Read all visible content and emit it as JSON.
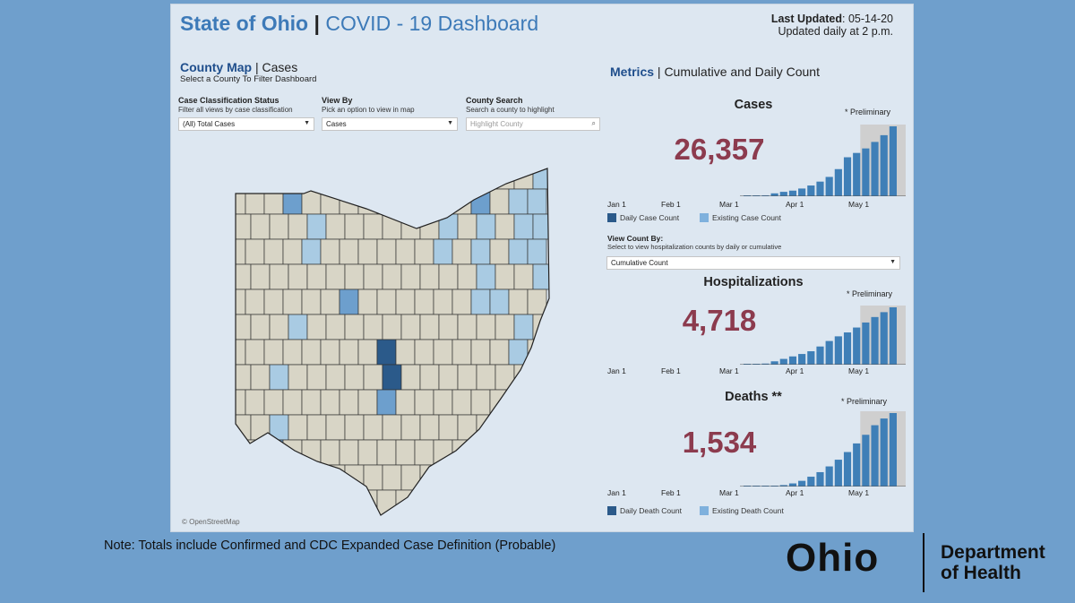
{
  "header": {
    "title_state": "State of Ohio",
    "title_sep": "|",
    "title_sub": "COVID - 19 Dashboard",
    "last_updated_label": "Last Updated",
    "last_updated_value": ": 05-14-20",
    "update_note": "Updated daily at 2 p.m."
  },
  "county_map": {
    "heading_strong": "County Map",
    "heading_rest": " | Cases",
    "subheading": "Select a County To Filter Dashboard",
    "attribution": "© OpenStreetMap",
    "filters": {
      "case_class": {
        "label": "Case Classification Status",
        "hint": "Filter all views by case classification",
        "value": "(All) Total Cases"
      },
      "view_by": {
        "label": "View By",
        "hint": "Pick an option to view in map",
        "value": "Cases"
      },
      "county_search": {
        "label": "County Search",
        "hint": "Search a county to highlight",
        "placeholder": "Highlight County"
      }
    }
  },
  "metrics": {
    "heading_strong": "Metrics",
    "heading_rest": " | Cumulative and Daily Count",
    "preliminary": "* Preliminary",
    "axis_ticks": [
      "Jan 1",
      "Feb 1",
      "Mar 1",
      "Apr 1",
      "May 1"
    ],
    "cases": {
      "title": "Cases",
      "value": "26,357"
    },
    "hospitalizations": {
      "title": "Hospitalizations",
      "value": "4,718"
    },
    "deaths": {
      "title": "Deaths **",
      "value": "1,534"
    },
    "case_legend": {
      "daily": "Daily Case Count",
      "existing": "Existing Case Count"
    },
    "death_legend": {
      "daily": "Daily Death Count",
      "existing": "Existing Death Count"
    },
    "view_count": {
      "label": "View Count By:",
      "hint": "Select to view hospitalization counts by daily or cumulative",
      "value": "Cumulative Count"
    }
  },
  "footer": {
    "note": "Note: Totals include Confirmed and CDC Expanded Case Definition (Probable)",
    "logo_word": "Ohio",
    "dept_line1": "Department",
    "dept_line2": "of Health"
  },
  "colors": {
    "title": "#3d7ab8",
    "big_number": "#8c3b4e",
    "bar": "#3f7fb7",
    "preliminary_shade": "#cfcfcf",
    "county_neutral": "#d8d5c6",
    "county_low": "#a9cbe3",
    "county_mid": "#6d9fcd",
    "county_high": "#2b5a8a"
  },
  "chart_data": [
    {
      "type": "bar",
      "title": "Cases",
      "x": [
        "Mar 9",
        "Mar 13",
        "Mar 17",
        "Mar 21",
        "Mar 25",
        "Mar 29",
        "Apr 2",
        "Apr 6",
        "Apr 10",
        "Apr 14",
        "Apr 18",
        "Apr 22",
        "Apr 26",
        "Apr 30",
        "May 4",
        "May 8",
        "May 12"
      ],
      "values": [
        3,
        67,
        351,
        1083,
        1653,
        2111,
        2902,
        4043,
        5512,
        7280,
        10222,
        14694,
        16325,
        18027,
        20474,
        23016,
        26357
      ],
      "preliminary_from": "Apr 30",
      "ylim": [
        0,
        26357
      ]
    },
    {
      "type": "bar",
      "title": "Hospitalizations",
      "x": [
        "Mar 9",
        "Mar 13",
        "Mar 17",
        "Mar 21",
        "Mar 25",
        "Mar 29",
        "Apr 2",
        "Apr 6",
        "Apr 10",
        "Apr 14",
        "Apr 18",
        "Apr 22",
        "Apr 26",
        "Apr 30",
        "May 4",
        "May 8",
        "May 12"
      ],
      "values": [
        1,
        20,
        91,
        276,
        475,
        679,
        879,
        1104,
        1495,
        1948,
        2331,
        2653,
        3056,
        3469,
        3919,
        4320,
        4718
      ],
      "preliminary_from": "Apr 30",
      "ylim": [
        0,
        4718
      ]
    },
    {
      "type": "bar",
      "title": "Deaths **",
      "x": [
        "Mar 9",
        "Mar 13",
        "Mar 17",
        "Mar 21",
        "Mar 25",
        "Mar 29",
        "Apr 2",
        "Apr 6",
        "Apr 10",
        "Apr 14",
        "Apr 18",
        "Apr 22",
        "Apr 26",
        "Apr 30",
        "May 4",
        "May 8",
        "May 12"
      ],
      "values": [
        0,
        0,
        3,
        9,
        30,
        65,
        119,
        205,
        300,
        420,
        560,
        720,
        900,
        1080,
        1280,
        1420,
        1534
      ],
      "preliminary_from": "Apr 30",
      "ylim": [
        0,
        1534
      ]
    }
  ]
}
